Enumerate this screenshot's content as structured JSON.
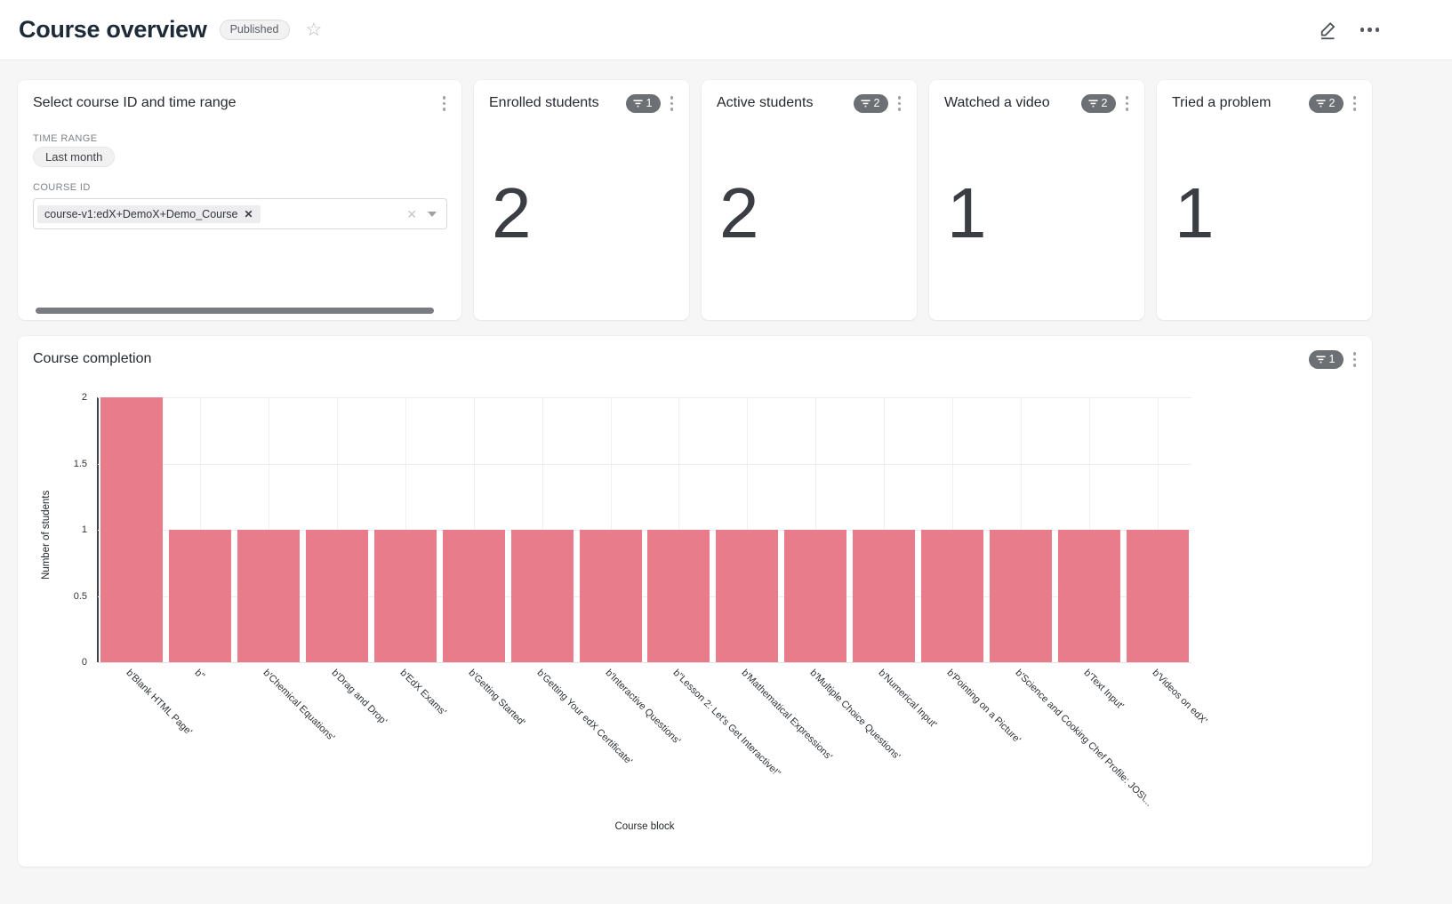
{
  "header": {
    "title": "Course overview",
    "status_badge": "Published"
  },
  "filter_card": {
    "title": "Select course ID and time range",
    "time_range_label": "TIME RANGE",
    "time_range_value": "Last month",
    "course_id_label": "COURSE ID",
    "course_id_tag": "course-v1:edX+DemoX+Demo_Course"
  },
  "metric_cards": [
    {
      "title": "Enrolled students",
      "filter_count": "1",
      "value": "2"
    },
    {
      "title": "Active students",
      "filter_count": "2",
      "value": "2"
    },
    {
      "title": "Watched a video",
      "filter_count": "2",
      "value": "1"
    },
    {
      "title": "Tried a problem",
      "filter_count": "2",
      "value": "1"
    }
  ],
  "chart_card": {
    "title": "Course completion",
    "filter_count": "1"
  },
  "chart_data": {
    "type": "bar",
    "title": "Course completion",
    "xlabel": "Course block",
    "ylabel": "Number of students",
    "ylim": [
      0,
      2
    ],
    "yticks": [
      0,
      0.5,
      1,
      1.5,
      2
    ],
    "grid": true,
    "legend": false,
    "bar_color": "#e87c8a",
    "categories": [
      "b'Blank HTML Page'",
      "b''",
      "b'Chemical Equations'",
      "b'Drag and Drop'",
      "b'EdX Exams'",
      "b'Getting Started'",
      "b'Getting Your edX Certificate'",
      "b'Interactive Questions'",
      "b\"Lesson 2: Let's Get Interactive!\"",
      "b'Mathematical Expressions'",
      "b'Multiple Choice Questions'",
      "b'Numerical Input'",
      "b'Pointing on a Picture'",
      "b'Science and Cooking Chef Profile: JOS\\...",
      "b'Text Input'",
      "b'Videos on edX'"
    ],
    "values": [
      2,
      1,
      1,
      1,
      1,
      1,
      1,
      1,
      1,
      1,
      1,
      1,
      1,
      1,
      1,
      1
    ]
  },
  "colors": {
    "bar": "#e87c8a",
    "badge_bg": "#6c7075",
    "page_bg": "#f6f6f7",
    "title_text": "#1d2a38"
  }
}
